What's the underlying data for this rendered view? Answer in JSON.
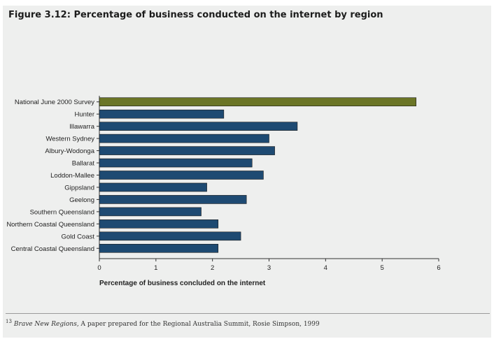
{
  "figure": {
    "title": "Figure 3.12: Percentage of business conducted on the internet by region"
  },
  "chart_data": {
    "type": "bar",
    "orientation": "horizontal",
    "title": "Figure 3.12: Percentage of business conducted on the internet by region",
    "xlabel": "Percentage of business concluded on the internet",
    "ylabel": "",
    "xlim": [
      0,
      6
    ],
    "xticks": [
      "0",
      "1",
      "2",
      "3",
      "4",
      "5",
      "6"
    ],
    "categories": [
      "National June 2000 Survey",
      "Hunter",
      "Illawarra",
      "Western Sydney",
      "Albury-Wodonga",
      "Ballarat",
      "Loddon-Mallee",
      "Gippsland",
      "Geelong",
      "Southern Queensland",
      "Northern Coastal Queensland",
      "Gold Coast",
      "Central Coastal Queensland"
    ],
    "values": [
      5.6,
      2.2,
      3.5,
      3.0,
      3.1,
      2.7,
      2.9,
      1.9,
      2.6,
      1.8,
      2.1,
      2.5,
      2.1
    ],
    "colors": {
      "highlight": "#6b7526",
      "bar": "#1e4a72",
      "axis": "#333333",
      "text": "#222222"
    },
    "grid": false,
    "legend": "none"
  },
  "footnote": {
    "number": "13",
    "source_title": "Brave New Regions",
    "text": ", A paper prepared for the Regional Australia Summit, Rosie Simpson, 1999"
  }
}
